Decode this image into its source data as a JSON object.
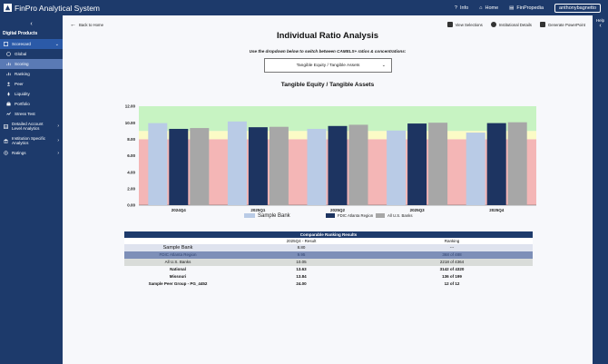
{
  "app": {
    "title": "FinPro Analytical System"
  },
  "topnav": {
    "info": "Info",
    "home": "Home",
    "finpropedia": "FinPropedia",
    "user": "anthonybagnetto"
  },
  "sidebar": {
    "collapse_glyph": "‹",
    "heading": "Digital Products",
    "top_item": "Scorecard",
    "items": [
      {
        "label": "Global"
      },
      {
        "label": "Scoring"
      },
      {
        "label": "Ranking"
      },
      {
        "label": "Peer"
      },
      {
        "label": "Liquidity"
      },
      {
        "label": "Portfolio"
      },
      {
        "label": "Stress Test"
      }
    ],
    "detailed": "Detailed Account Level Analytics",
    "institution": "Institution Specific Analytics",
    "ratings": "Ratings"
  },
  "rightbar": {
    "help": "Help",
    "collapse_glyph": "‹"
  },
  "toolbar": {
    "back": "Back to Home",
    "view_selections": "View Selections",
    "institutional_details": "Institutional Details",
    "generate_ppt": "Generate PowerPoint"
  },
  "page": {
    "title": "Individual Ratio Analysis",
    "hint": "Use the dropdown below to switch between CAMELS+ ratios & concentrations:",
    "selected_ratio": "Tangible Equity / Tangible Assets"
  },
  "chart_data": {
    "type": "bar",
    "title": "Tangible Equity / Tangible Assets",
    "categories": [
      "2024Q4",
      "2025Q1",
      "2025Q2",
      "2025Q3",
      "2025Q4"
    ],
    "series": [
      {
        "name": "Sample Bank",
        "values": [
          9.95,
          10.15,
          9.25,
          9.05,
          8.8
        ],
        "color": "#b9cbe6"
      },
      {
        "name": "FDIC Atlanta Region",
        "values": [
          9.25,
          9.45,
          9.6,
          9.9,
          9.95
        ],
        "color": "#1d3461"
      },
      {
        "name": "All U.S. Banks",
        "values": [
          9.35,
          9.5,
          9.75,
          10.0,
          10.05
        ],
        "color": "#a7a7a7"
      }
    ],
    "ylim": [
      0,
      12
    ],
    "yticks": [
      "0.00",
      "2.00",
      "4.00",
      "6.00",
      "8.00",
      "10.00",
      "12.00"
    ],
    "bands": [
      {
        "from": 0,
        "to": 8,
        "color": "#f4b6b6"
      },
      {
        "from": 8,
        "to": 9,
        "color": "#fbfbc6"
      },
      {
        "from": 9,
        "to": 12,
        "color": "#c7f3c2"
      }
    ],
    "legend_position": "bottom"
  },
  "ranking_table": {
    "title": "Comparable Ranking Results",
    "col_result": "2025Q4 - Result",
    "col_ranking": "Ranking",
    "rows": [
      {
        "name": "Sample Bank",
        "result": "8.80",
        "ranking": "---"
      },
      {
        "name": "FDIC Atlanta Region",
        "result": "9.95",
        "ranking": "368 of 488"
      },
      {
        "name": "All U.S. Banks",
        "result": "10.05",
        "ranking": "2218 of 4364"
      },
      {
        "name": "National",
        "result": "13.63",
        "ranking": "3142 of 4320"
      },
      {
        "name": "Missouri",
        "result": "13.84",
        "ranking": "136 of 199"
      },
      {
        "name": "Sample Peer Group - PG_4452",
        "result": "24.00",
        "ranking": "12 of 12"
      }
    ]
  }
}
